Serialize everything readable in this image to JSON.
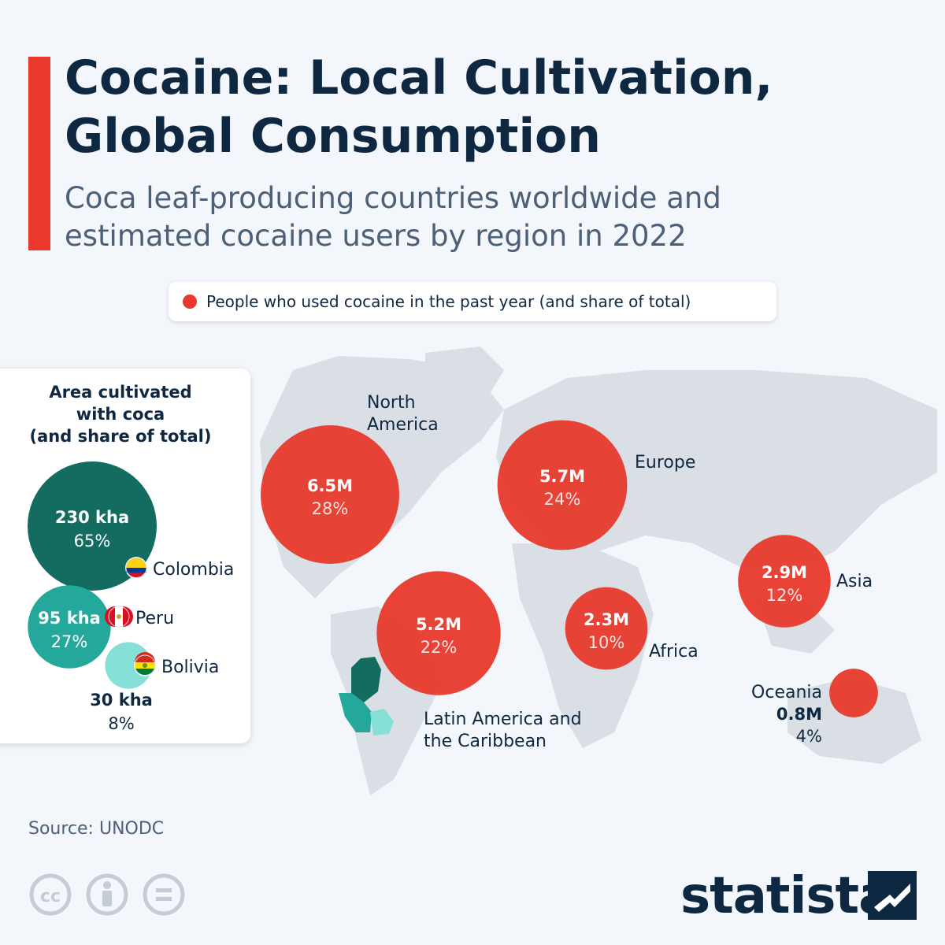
{
  "header": {
    "title_line1": "Cocaine: Local Cultivation,",
    "title_line2": "Global Consumption",
    "subtitle_line1": "Coca leaf-producing countries worldwide and",
    "subtitle_line2": "estimated cocaine users by region in 2022"
  },
  "legend": {
    "label": "People who used cocaine in the past year (and share of total)",
    "color": "#e8392c"
  },
  "panel": {
    "title_line1": "Area cultivated",
    "title_line2": "with coca",
    "title_line3": "(and share of total)"
  },
  "colors": {
    "users": "#e8392c",
    "colombia": "#136c5f",
    "peru": "#24a89b",
    "bolivia": "#86e0d8",
    "map_land": "#dadfe5",
    "text": "#0f2842"
  },
  "chart_data": [
    {
      "type": "bubble",
      "series": "People who used cocaine in the past year (and share of total)",
      "unit": "million people",
      "points": [
        {
          "region": "North America",
          "region_line1": "North",
          "region_line2": "America",
          "value": 6.5,
          "value_label": "6.5M",
          "share": 28,
          "share_label": "28%"
        },
        {
          "region": "Europe",
          "region_line1": "Europe",
          "region_line2": "",
          "value": 5.7,
          "value_label": "5.7M",
          "share": 24,
          "share_label": "24%"
        },
        {
          "region": "Latin America and the Caribbean",
          "region_line1": "Latin America and",
          "region_line2": "the Caribbean",
          "value": 5.2,
          "value_label": "5.2M",
          "share": 22,
          "share_label": "22%"
        },
        {
          "region": "Asia",
          "region_line1": "Asia",
          "region_line2": "",
          "value": 2.9,
          "value_label": "2.9M",
          "share": 12,
          "share_label": "12%"
        },
        {
          "region": "Africa",
          "region_line1": "Africa",
          "region_line2": "",
          "value": 2.3,
          "value_label": "2.3M",
          "share": 10,
          "share_label": "10%"
        },
        {
          "region": "Oceania",
          "region_line1": "Oceania",
          "region_line2": "",
          "value": 0.8,
          "value_label": "0.8M",
          "share": 4,
          "share_label": "4%"
        }
      ]
    },
    {
      "type": "bubble",
      "title": "Area cultivated with coca (and share of total)",
      "unit": "kha",
      "points": [
        {
          "country": "Colombia",
          "value": 230,
          "value_label": "230 kha",
          "share": 65,
          "share_label": "65%"
        },
        {
          "country": "Peru",
          "value": 95,
          "value_label": "95 kha",
          "share": 27,
          "share_label": "27%"
        },
        {
          "country": "Bolivia",
          "value": 30,
          "value_label": "30 kha",
          "share": 8,
          "share_label": "8%"
        }
      ]
    }
  ],
  "footer": {
    "source": "Source: UNODC",
    "brand": "statista",
    "cc_label": "cc"
  }
}
